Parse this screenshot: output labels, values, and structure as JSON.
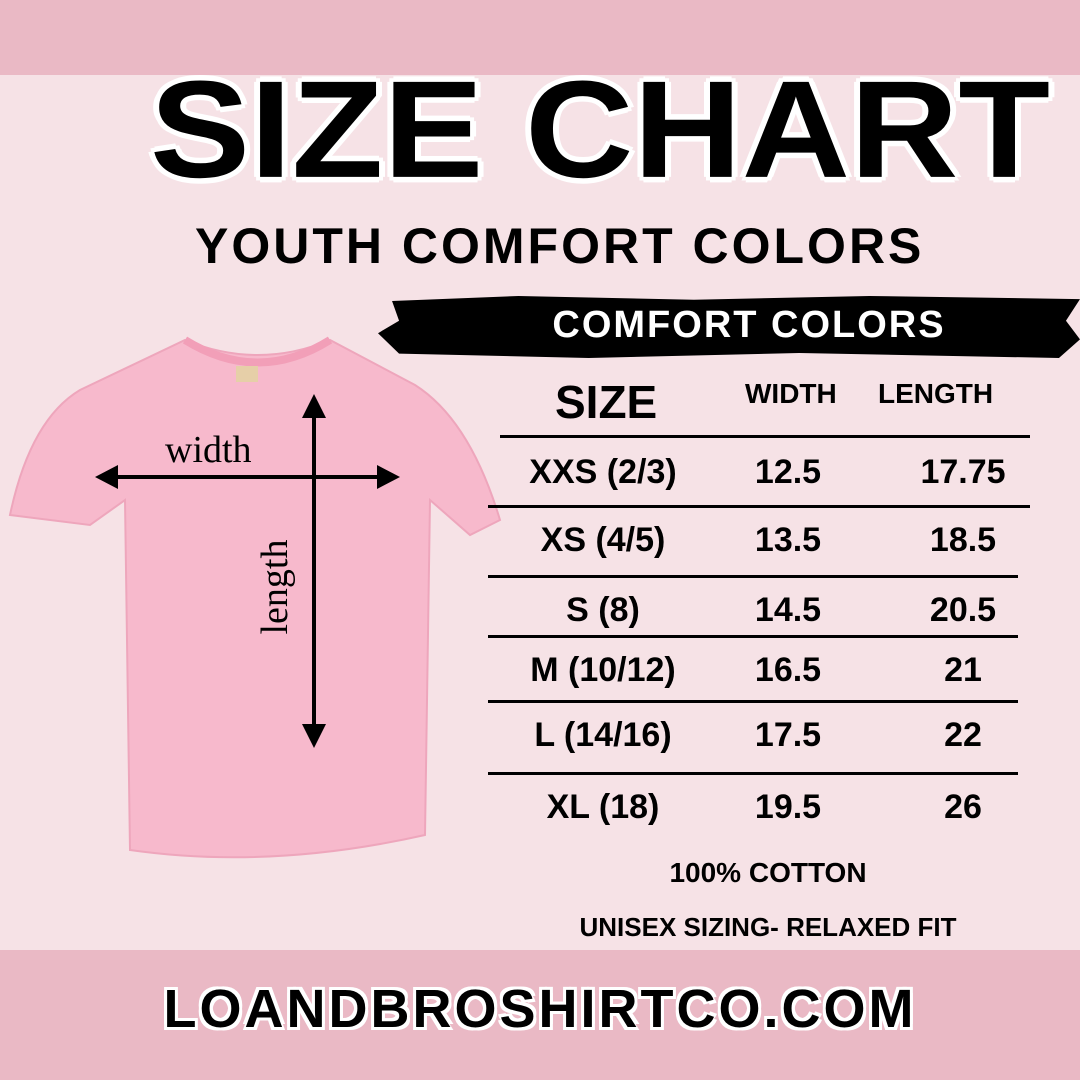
{
  "title": "SIZE CHART",
  "subtitle": "YOUTH COMFORT COLORS",
  "banner": "COMFORT COLORS",
  "diagram": {
    "width_label": "width",
    "length_label": "length",
    "shirt_color": "#f7b9cc"
  },
  "table": {
    "headers": [
      "SIZE",
      "WIDTH",
      "LENGTH"
    ],
    "rows": [
      {
        "size": "XXS (2/3)",
        "width": "12.5",
        "length": "17.75"
      },
      {
        "size": "XS (4/5)",
        "width": "13.5",
        "length": "18.5"
      },
      {
        "size": "S (8)",
        "width": "14.5",
        "length": "20.5"
      },
      {
        "size": "M (10/12)",
        "width": "16.5",
        "length": "21"
      },
      {
        "size": "L (14/16)",
        "width": "17.5",
        "length": "22"
      },
      {
        "size": "XL (18)",
        "width": "19.5",
        "length": "26"
      }
    ]
  },
  "notes": [
    "100% COTTON",
    "UNISEX SIZING- RELAXED FIT"
  ],
  "footer": "LOANDBROSHIRTCO.COM",
  "colors": {
    "band": "#eab9c5",
    "background": "#f6e2e6",
    "text": "#000000"
  }
}
